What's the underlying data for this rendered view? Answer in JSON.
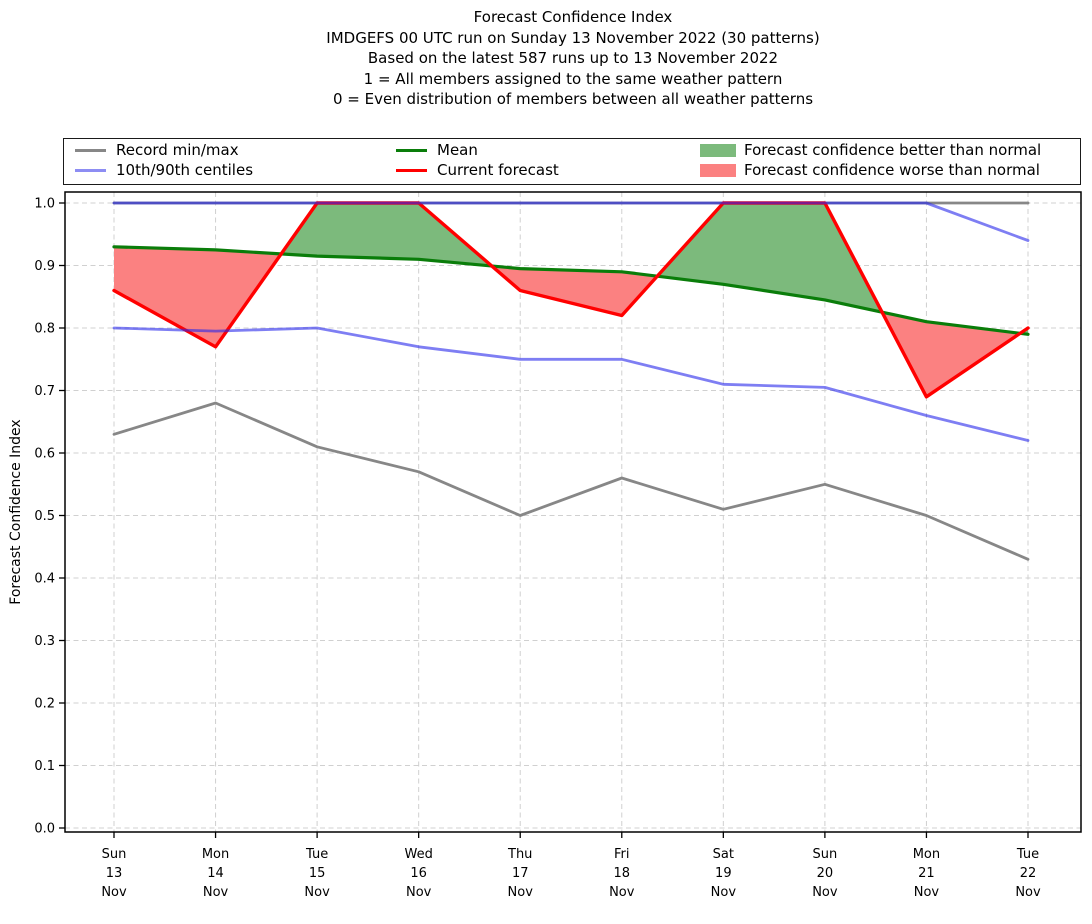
{
  "header": {
    "title": "Forecast Confidence Index",
    "run_line": "IMDGEFS 00 UTC run on Sunday 13 November 2022 (30 patterns)",
    "basis_line": "Based on the latest 587 runs up to 13 November 2022",
    "scale_one_line": "1 = All members assigned to the same weather pattern",
    "scale_zero_line": "0 = Even distribution of members between all weather patterns"
  },
  "legend": {
    "record_minmax": "Record min/max",
    "centiles": "10th/90th centiles",
    "mean": "Mean",
    "current_forecast": "Current forecast",
    "better": "Forecast confidence better than normal",
    "worse": "Forecast confidence worse than normal"
  },
  "colors": {
    "record": "#878787",
    "centiles_stroke": "rgba(40,40,235,0.60)",
    "centiles_legend": "#8d8df3",
    "mean": "#0a7d0a",
    "forecast": "#ff0000",
    "fill_better": "#7cba7c",
    "fill_worse": "#fb8181",
    "grid": "#d0d0d0",
    "frame": "#000000"
  },
  "chart_data": {
    "type": "line",
    "title": "Forecast Confidence Index",
    "xlabel": "",
    "ylabel": "Forecast Confidence Index",
    "ylim": [
      0.0,
      1.0
    ],
    "yticks": [
      0.0,
      0.1,
      0.2,
      0.3,
      0.4,
      0.5,
      0.6,
      0.7,
      0.8,
      0.9,
      1.0
    ],
    "grid": true,
    "legend_position": "top",
    "categories": [
      "Sun 13 Nov",
      "Mon 14 Nov",
      "Tue 15 Nov",
      "Wed 16 Nov",
      "Thu 17 Nov",
      "Fri 18 Nov",
      "Sat 19 Nov",
      "Sun 20 Nov",
      "Mon 21 Nov",
      "Tue 22 Nov"
    ],
    "x_tick_labels": [
      [
        "Sun",
        "13",
        "Nov"
      ],
      [
        "Mon",
        "14",
        "Nov"
      ],
      [
        "Tue",
        "15",
        "Nov"
      ],
      [
        "Wed",
        "16",
        "Nov"
      ],
      [
        "Thu",
        "17",
        "Nov"
      ],
      [
        "Fri",
        "18",
        "Nov"
      ],
      [
        "Sat",
        "19",
        "Nov"
      ],
      [
        "Sun",
        "20",
        "Nov"
      ],
      [
        "Mon",
        "21",
        "Nov"
      ],
      [
        "Tue",
        "22",
        "Nov"
      ]
    ],
    "series": [
      {
        "key": "record_max",
        "name": "Record max",
        "values": [
          1.0,
          1.0,
          1.0,
          1.0,
          1.0,
          1.0,
          1.0,
          1.0,
          1.0,
          1.0
        ]
      },
      {
        "key": "record_min",
        "name": "Record min",
        "values": [
          0.63,
          0.68,
          0.61,
          0.57,
          0.5,
          0.56,
          0.51,
          0.55,
          0.5,
          0.43
        ]
      },
      {
        "key": "p90",
        "name": "90th centile",
        "values": [
          1.0,
          1.0,
          1.0,
          1.0,
          1.0,
          1.0,
          1.0,
          1.0,
          1.0,
          0.94
        ]
      },
      {
        "key": "p10",
        "name": "10th centile",
        "values": [
          0.8,
          0.795,
          0.8,
          0.77,
          0.75,
          0.75,
          0.71,
          0.705,
          0.66,
          0.62
        ]
      },
      {
        "key": "mean",
        "name": "Mean",
        "values": [
          0.93,
          0.925,
          0.915,
          0.91,
          0.895,
          0.89,
          0.87,
          0.845,
          0.81,
          0.79
        ]
      },
      {
        "key": "forecast",
        "name": "Current forecast",
        "values": [
          0.86,
          0.77,
          1.0,
          1.0,
          0.86,
          0.82,
          1.0,
          1.0,
          0.69,
          0.8
        ]
      }
    ],
    "fills": {
      "better": "shaded green where Current forecast > Mean",
      "worse": "shaded red where Current forecast < Mean"
    }
  }
}
